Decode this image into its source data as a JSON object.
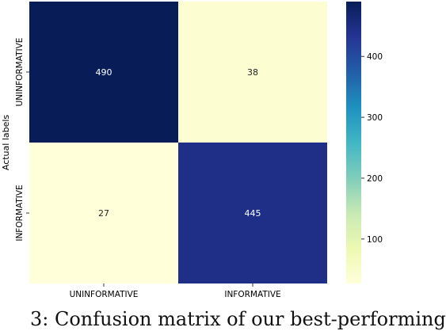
{
  "chart_data": {
    "type": "heatmap",
    "x_categories": [
      "UNINFORMATIVE",
      "INFORMATIVE"
    ],
    "y_categories": [
      "UNINFORMATIVE",
      "INFORMATIVE"
    ],
    "ylabel": "Actual labels",
    "xlabel": "",
    "values": [
      [
        490,
        38
      ],
      [
        27,
        445
      ]
    ],
    "colorbar": {
      "range": [
        27,
        490
      ],
      "ticks": [
        100,
        200,
        300,
        400
      ],
      "colormap": "YlGnBu"
    },
    "grid": false
  },
  "caption_fragment": "3:   Confusion matrix of our best-performing"
}
